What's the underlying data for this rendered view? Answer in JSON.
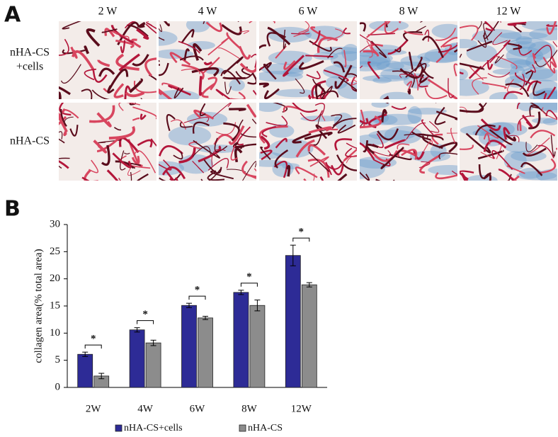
{
  "panel_a": {
    "label": "A",
    "columns": [
      "2 W",
      "4 W",
      "6 W",
      "8 W",
      "12 W"
    ],
    "rows": [
      {
        "lines": [
          "nHA-CS",
          "+cells"
        ]
      },
      {
        "lines": [
          "nHA-CS"
        ]
      }
    ]
  },
  "chart_data": {
    "type": "bar",
    "panel_label": "B",
    "ylabel": "collagen area(% total area)",
    "categories": [
      "2W",
      "4W",
      "6W",
      "8W",
      "12W"
    ],
    "series": [
      {
        "name": "nHA-CS+cells",
        "color": "#2d2b96",
        "values": [
          6.1,
          10.6,
          15.1,
          17.5,
          24.3
        ],
        "errors": [
          0.4,
          0.4,
          0.4,
          0.4,
          1.9
        ]
      },
      {
        "name": "nHA-CS",
        "color": "#8c8c8c",
        "values": [
          2.1,
          8.2,
          12.8,
          15.1,
          18.9
        ],
        "errors": [
          0.5,
          0.5,
          0.3,
          1.0,
          0.4
        ]
      }
    ],
    "annotations": [
      "*",
      "*",
      "*",
      "*",
      "*"
    ],
    "ylim": [
      0,
      30
    ],
    "yticks": [
      0,
      5,
      10,
      15,
      20,
      25,
      30
    ]
  }
}
